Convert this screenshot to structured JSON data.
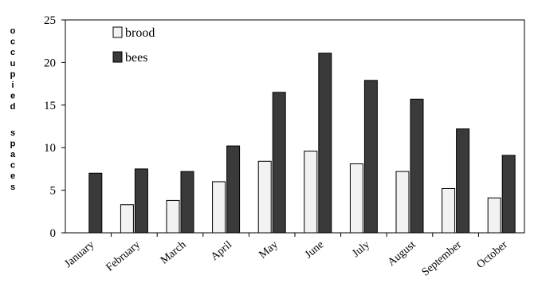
{
  "chart_data": {
    "type": "bar",
    "categories": [
      "January",
      "February",
      "March",
      "April",
      "May",
      "June",
      "July",
      "August",
      "September",
      "October"
    ],
    "series": [
      {
        "name": "brood",
        "values": [
          0,
          3.3,
          3.8,
          6.0,
          8.4,
          9.6,
          8.1,
          7.2,
          5.2,
          4.1
        ],
        "color": "#f2f2f2"
      },
      {
        "name": "bees",
        "values": [
          7.0,
          7.5,
          7.2,
          10.2,
          16.5,
          21.1,
          17.9,
          15.7,
          12.2,
          9.1
        ],
        "color": "#3a3a3a"
      }
    ],
    "ylabel": "occupied spaces",
    "yticks": [
      0,
      5,
      10,
      15,
      20,
      25
    ],
    "ylim": [
      0,
      25
    ],
    "legend_position": "top-left",
    "grid": false
  }
}
